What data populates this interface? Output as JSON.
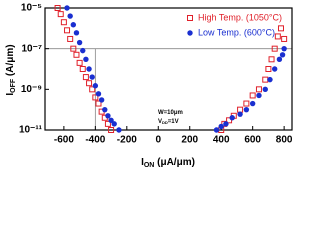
{
  "chart_data": {
    "type": "scatter",
    "y_label": {
      "main": "I",
      "sub": "OFF",
      "unit": " (A/μm)"
    },
    "x_label": {
      "main": "I",
      "sub": "ON",
      "unit": " (μA/μm)"
    },
    "annotations": [
      {
        "main": "W=10μm"
      },
      {
        "main": "V",
        "sub": "DD",
        "unit": "=1V"
      }
    ],
    "log_y": true,
    "xlim": [
      -720,
      850
    ],
    "ylim": [
      1e-11,
      1e-05
    ],
    "xticks": [
      -600,
      -400,
      -200,
      0,
      200,
      400,
      600,
      800
    ],
    "yticks": [
      {
        "value": 1e-11,
        "label": "10⁻¹¹"
      },
      {
        "value": 1e-09,
        "label": "10⁻⁹"
      },
      {
        "value": 1e-07,
        "label": "10⁻⁷"
      },
      {
        "value": 1e-05,
        "label": "10⁻⁵"
      }
    ],
    "hlines": [
      1e-07
    ],
    "vlines": [
      -400
    ],
    "legend": "top-right",
    "series": [
      {
        "name": "High Temp. (1050°C)",
        "color": "#e0202a",
        "marker": "open-square",
        "x": [
          -640,
          -620,
          -600,
          -580,
          -560,
          -540,
          -520,
          -500,
          -480,
          -460,
          -440,
          -420,
          -400,
          -380,
          -360,
          -340,
          -320,
          -300,
          400,
          420,
          450,
          480,
          520,
          560,
          600,
          640,
          680,
          700,
          720,
          740,
          760,
          780,
          800
        ],
        "values": [
          1e-05,
          5e-06,
          2e-06,
          8e-07,
          3e-07,
          1e-07,
          5e-08,
          2e-08,
          1e-08,
          4e-09,
          2e-09,
          1e-09,
          4e-10,
          2e-10,
          8e-11,
          4e-11,
          2e-11,
          1e-11,
          1e-11,
          2e-11,
          3e-11,
          5e-11,
          1e-10,
          2e-10,
          5e-10,
          1e-09,
          3e-09,
          1e-08,
          3e-08,
          1e-07,
          4e-07,
          1e-06,
          3e-07
        ]
      },
      {
        "name": "Low Temp. (600°C)",
        "color": "#1a2fd0",
        "marker": "filled-circle",
        "x": [
          -580,
          -560,
          -540,
          -520,
          -500,
          -480,
          -460,
          -440,
          -420,
          -400,
          -380,
          -360,
          -340,
          -320,
          -300,
          -280,
          -250,
          370,
          400,
          430,
          470,
          520,
          560,
          600,
          640,
          680,
          710,
          740,
          770,
          800,
          790
        ],
        "values": [
          1e-05,
          4e-06,
          1.5e-06,
          6e-07,
          2e-07,
          8e-08,
          3e-08,
          1e-08,
          4e-09,
          1.5e-09,
          6e-10,
          3e-10,
          1e-10,
          5e-11,
          3e-11,
          2e-11,
          1e-11,
          1e-11,
          1.5e-11,
          2e-11,
          4e-11,
          6e-11,
          1e-10,
          2e-10,
          5e-10,
          1e-09,
          3e-09,
          1e-08,
          3e-08,
          1e-07,
          5e-08
        ]
      }
    ]
  }
}
